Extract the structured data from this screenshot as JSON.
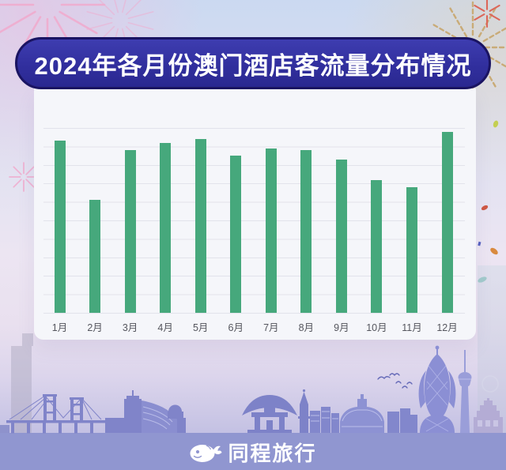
{
  "title": {
    "text": "2024年各月份澳门酒店客流量分布情况"
  },
  "chart_data": {
    "type": "bar",
    "title": "2024年各月份澳门酒店客流量分布情况",
    "categories": [
      "1月",
      "2月",
      "3月",
      "4月",
      "5月",
      "6月",
      "7月",
      "8月",
      "9月",
      "10月",
      "11月",
      "12月"
    ],
    "values": [
      93,
      61,
      88,
      92,
      94,
      85,
      89,
      88,
      83,
      72,
      68,
      98
    ],
    "xlabel": "",
    "ylabel": "",
    "ylim": [
      0,
      100
    ],
    "grid": true,
    "grid_step": 10,
    "legend": "none",
    "bar_color": "#46a87c",
    "value_basis": "relative index estimated from unlabeled gridlines"
  },
  "footer": {
    "brand": "同程旅行"
  },
  "icons": {
    "mascot": "tongcheng-mascot-icon",
    "fireworks_left": "pink-fireworks-icon",
    "fireworks_right": "gold-fireworks-icon",
    "birds": "birds-icon",
    "skyline": "macau-skyline-illustration"
  },
  "colors": {
    "banner_bg": "#312f9e",
    "banner_border": "#1a1462",
    "banner_text": "#ffffff",
    "card_bg": "#f5f6fa",
    "gridline": "#e2e3eb",
    "bar": "#46a87c",
    "axis_label": "#55565e",
    "footer_band": "#9096d0",
    "skyline": "#8084c9",
    "background_top": "#cbd9f1",
    "background_mid": "#ece5f2",
    "firework_pink": "#f1aacd",
    "firework_gold": "#c8a76d"
  }
}
